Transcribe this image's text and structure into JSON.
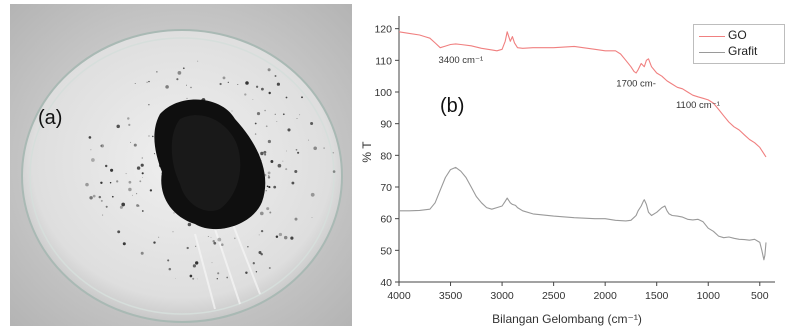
{
  "panel_a": {
    "label": "(a)"
  },
  "panel_b": {
    "label": "(b)"
  },
  "colors": {
    "go": "#f08080",
    "grafit": "#9a9a9a",
    "axis": "#444444",
    "text": "#333333"
  },
  "chart_data": {
    "type": "line",
    "title": "",
    "xlabel": "Bilangan Gelombang (cm⁻¹)",
    "ylabel": "% T",
    "xlim": [
      4000,
      430
    ],
    "ylim": [
      40,
      124
    ],
    "x_ticks": [
      4000,
      3500,
      3000,
      2500,
      2000,
      1500,
      1000,
      500
    ],
    "y_ticks": [
      40,
      50,
      60,
      70,
      80,
      90,
      100,
      110,
      120
    ],
    "grid": false,
    "legend_position": "top-right",
    "series": [
      {
        "name": "GO",
        "x": [
          4000,
          3900,
          3800,
          3750,
          3700,
          3650,
          3600,
          3550,
          3500,
          3450,
          3400,
          3300,
          3200,
          3100,
          3050,
          3000,
          2970,
          2950,
          2920,
          2900,
          2880,
          2860,
          2850,
          2800,
          2700,
          2500,
          2300,
          2100,
          2000,
          1900,
          1850,
          1800,
          1750,
          1720,
          1700,
          1680,
          1650,
          1620,
          1600,
          1580,
          1550,
          1500,
          1450,
          1400,
          1350,
          1300,
          1250,
          1200,
          1150,
          1100,
          1050,
          1000,
          950,
          900,
          850,
          800,
          750,
          700,
          650,
          600,
          550,
          500,
          470,
          450,
          440
        ],
        "y": [
          119,
          118.5,
          118,
          117.5,
          117,
          115.5,
          114,
          114.5,
          115,
          115.2,
          115,
          114.6,
          113.8,
          113.3,
          113,
          113.5,
          116,
          119,
          116,
          117.5,
          115.5,
          114.5,
          114,
          113.8,
          114,
          114,
          114.4,
          113.5,
          113,
          113,
          112,
          110,
          108,
          106.5,
          106,
          107,
          109,
          108,
          110,
          110.5,
          108,
          106,
          105,
          103.5,
          102.5,
          101.5,
          101,
          100,
          99,
          98.5,
          98,
          97.5,
          96.5,
          94.5,
          92.5,
          90.5,
          89,
          88,
          86.5,
          85,
          84,
          82.5,
          81,
          80,
          79.5
        ]
      },
      {
        "name": "Grafit",
        "x": [
          4000,
          3900,
          3800,
          3700,
          3650,
          3600,
          3550,
          3500,
          3450,
          3400,
          3350,
          3300,
          3250,
          3200,
          3150,
          3100,
          3050,
          3000,
          2970,
          2950,
          2920,
          2900,
          2870,
          2850,
          2800,
          2700,
          2500,
          2300,
          2100,
          2000,
          1900,
          1800,
          1750,
          1700,
          1680,
          1650,
          1630,
          1620,
          1600,
          1580,
          1550,
          1500,
          1450,
          1420,
          1400,
          1380,
          1350,
          1300,
          1250,
          1200,
          1150,
          1100,
          1050,
          1000,
          950,
          900,
          850,
          800,
          750,
          700,
          650,
          600,
          550,
          500,
          480,
          460,
          450,
          440
        ],
        "y": [
          62.5,
          62.5,
          62.6,
          63,
          65,
          69,
          73,
          75.5,
          76.2,
          75,
          73,
          70,
          67,
          65,
          63.5,
          63,
          63.5,
          64,
          65.5,
          66.5,
          65,
          64.5,
          64.2,
          63.5,
          62.5,
          61.5,
          60.8,
          60.3,
          60,
          60,
          59.5,
          59.3,
          59.5,
          61,
          62.5,
          64,
          65.5,
          66,
          64.5,
          62,
          61,
          62,
          63.5,
          64,
          62.5,
          61.5,
          61,
          60.8,
          60.5,
          59.8,
          59.6,
          59.8,
          59,
          57,
          56,
          54.5,
          54,
          54.2,
          53.8,
          53.5,
          53.4,
          53.2,
          53.5,
          52.5,
          50,
          47,
          48.5,
          52.5
        ]
      }
    ],
    "annotations": [
      {
        "text": "3400 cm⁻¹",
        "x": 3400,
        "y": 109.2
      },
      {
        "text": "1700 cm-",
        "x": 1700,
        "y": 101.8
      },
      {
        "text": "1100 cm⁻¹",
        "x": 1100,
        "y": 95
      }
    ]
  }
}
